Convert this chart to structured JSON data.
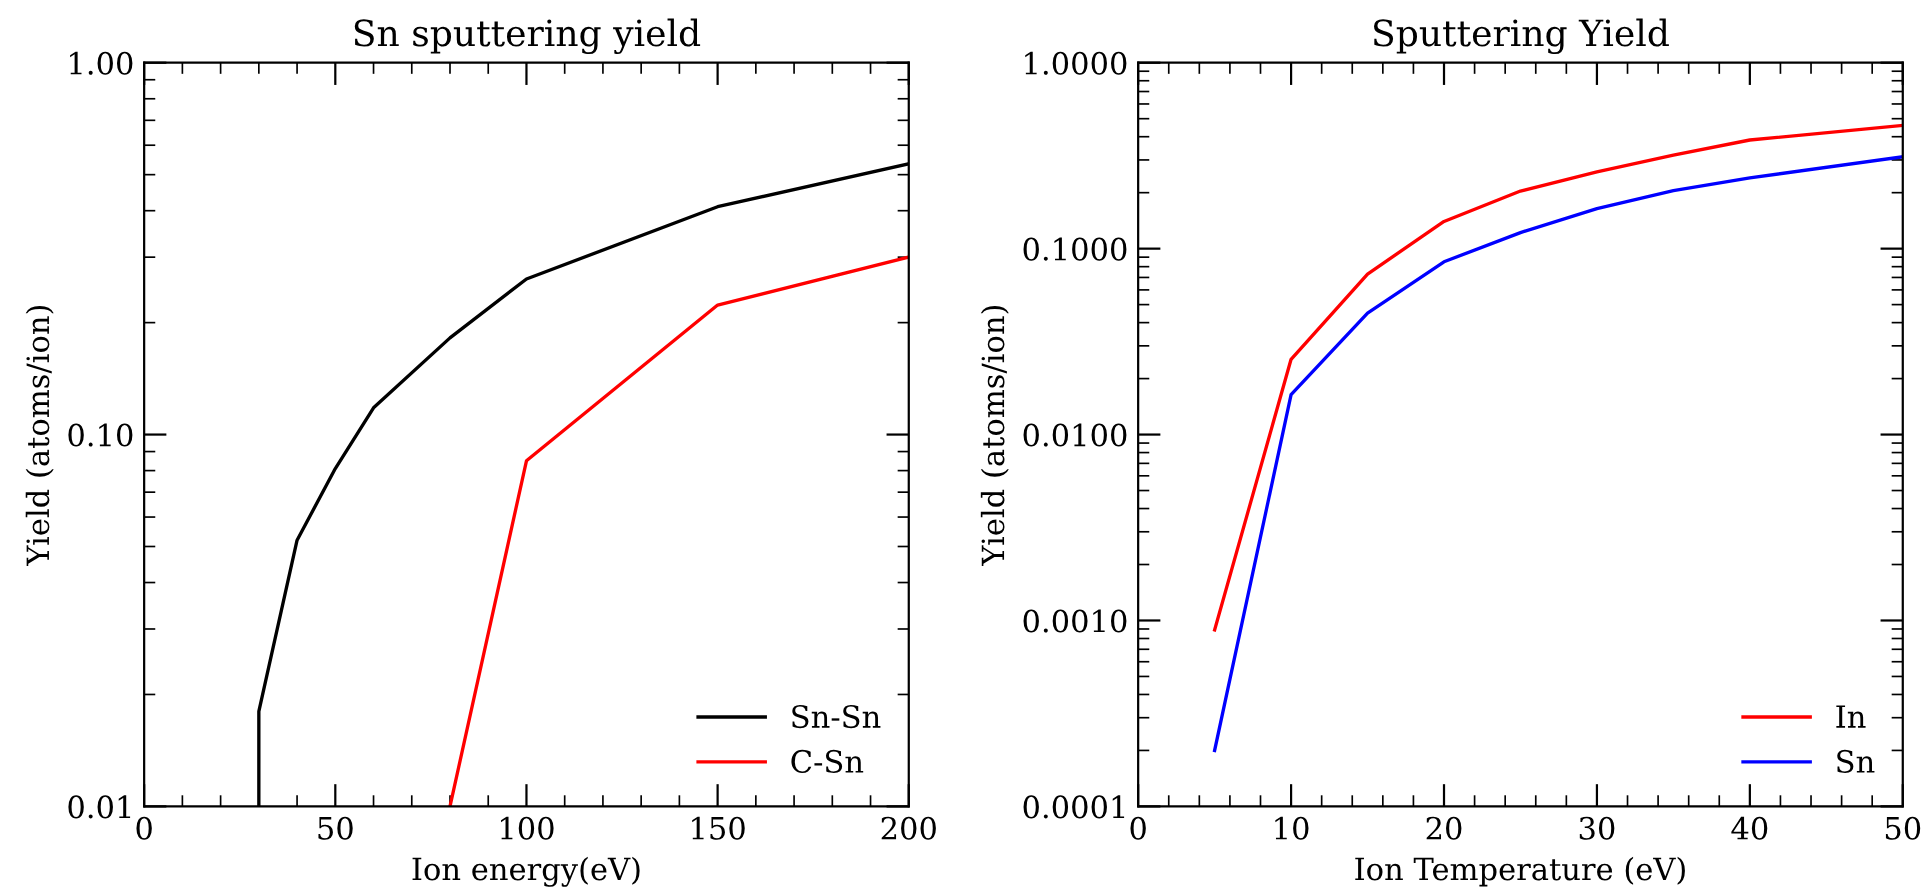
{
  "chart_data": [
    {
      "type": "line",
      "title": "Sn sputtering yield",
      "xlabel": "Ion energy(eV)",
      "ylabel": "Yield (atoms/ion)",
      "log": "y",
      "xlim": [
        0,
        200
      ],
      "xticks": [
        0,
        50,
        100,
        150,
        200
      ],
      "ylim": [
        0.01,
        1
      ],
      "yticks": [
        {
          "value": 0.01,
          "label": "0.01"
        },
        {
          "value": 0.1,
          "label": "0.10"
        },
        {
          "value": 1,
          "label": "1.00"
        }
      ],
      "legend": "bottom right",
      "series": [
        {
          "name": "Sn-Sn",
          "color": "#000000",
          "x": [
            30,
            30,
            40,
            50,
            60,
            80,
            100,
            150,
            200
          ],
          "values": [
            0.01,
            0.018,
            0.052,
            0.081,
            0.118,
            0.182,
            0.262,
            0.41,
            0.535
          ]
        },
        {
          "name": "C-Sn",
          "color": "#ff0000",
          "x": [
            80,
            100,
            150,
            200
          ],
          "values": [
            0.01,
            0.085,
            0.223,
            0.3
          ]
        }
      ]
    },
    {
      "type": "line",
      "title": "Sputtering Yield",
      "xlabel": "Ion Temperature (eV)",
      "ylabel": "Yield (atoms/ion)",
      "log": "y",
      "xlim": [
        0,
        50
      ],
      "xticks": [
        0,
        10,
        20,
        30,
        40,
        50
      ],
      "ylim": [
        0.0001,
        1
      ],
      "yticks": [
        {
          "value": 0.0001,
          "label": "0.0001"
        },
        {
          "value": 0.001,
          "label": "0.0010"
        },
        {
          "value": 0.01,
          "label": "0.0100"
        },
        {
          "value": 0.1,
          "label": "0.1000"
        },
        {
          "value": 1,
          "label": "1.0000"
        }
      ],
      "legend": "bottom right",
      "series": [
        {
          "name": "In",
          "color": "#ff0000",
          "x": [
            5,
            10,
            15,
            20,
            25,
            30,
            35,
            40,
            50
          ],
          "values": [
            0.00089,
            0.0254,
            0.073,
            0.14,
            0.204,
            0.259,
            0.318,
            0.384,
            0.46
          ]
        },
        {
          "name": "Sn",
          "color": "#0000ff",
          "x": [
            5,
            10,
            15,
            20,
            25,
            30,
            35,
            40,
            50
          ],
          "values": [
            0.0002,
            0.0164,
            0.045,
            0.085,
            0.122,
            0.164,
            0.205,
            0.24,
            0.312
          ]
        }
      ]
    }
  ]
}
